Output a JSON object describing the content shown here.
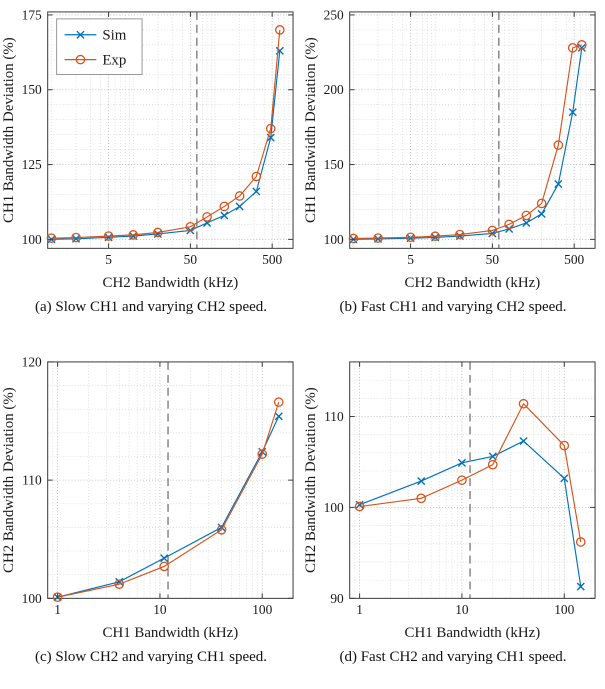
{
  "page": {
    "background": "#ffffff"
  },
  "colors": {
    "sim": "#0072BD",
    "exp": "#D95319",
    "axis": "#3a3a3a",
    "grid_major": "#b3b3b3",
    "grid_minor": "#d8d8d8",
    "threshold": "#5a5a5a",
    "legend_border": "#999999",
    "text": "#1a1a1a"
  },
  "chart_data": [
    {
      "id": "a",
      "type": "line",
      "caption": "(a) Slow CH1 and varying CH2 speed.",
      "xlabel": "CH2 Bandwidth (kHz)",
      "ylabel": "CH1 Bandwidth Deviation (%)",
      "xscale": "log",
      "grid": true,
      "xlim": [
        0.9,
        900
      ],
      "ylim": [
        97,
        176
      ],
      "xticks": [
        5,
        50,
        500
      ],
      "yticks": [
        100,
        125,
        150,
        175
      ],
      "y_minor_step": 5,
      "threshold_x": 60,
      "legend": true,
      "legend_pos": "top-left",
      "x": [
        1,
        2,
        5,
        10,
        20,
        50,
        80,
        130,
        200,
        320,
        480,
        620
      ],
      "series": [
        {
          "name": "Sim",
          "marker": "x",
          "values": [
            100,
            100.2,
            100.7,
            101.1,
            101.8,
            103,
            105.5,
            108,
            111,
            116,
            134,
            163
          ]
        },
        {
          "name": "Exp",
          "marker": "o",
          "values": [
            100.4,
            100.6,
            101.1,
            101.5,
            102.3,
            104.2,
            107.5,
            111,
            114.5,
            121,
            137,
            170
          ]
        }
      ]
    },
    {
      "id": "b",
      "type": "line",
      "caption": "(b) Fast CH1 and varying CH2 speed.",
      "xlabel": "CH2 Bandwidth (kHz)",
      "ylabel": "CH1 Bandwidth Deviation (%)",
      "xscale": "log",
      "grid": true,
      "xlim": [
        0.9,
        900
      ],
      "ylim": [
        94,
        252
      ],
      "xticks": [
        5,
        50,
        500
      ],
      "yticks": [
        100,
        150,
        200,
        250
      ],
      "y_minor_step": 10,
      "threshold_x": 60,
      "legend": false,
      "x": [
        1,
        2,
        5,
        10,
        20,
        50,
        80,
        130,
        200,
        320,
        480,
        620
      ],
      "series": [
        {
          "name": "Sim",
          "marker": "x",
          "values": [
            100,
            100.3,
            100.8,
            101.3,
            102.2,
            104,
            107,
            111,
            117,
            137,
            185,
            228
          ]
        },
        {
          "name": "Exp",
          "marker": "o",
          "values": [
            100.6,
            100.9,
            101.4,
            102.1,
            103.2,
            106,
            110,
            116,
            124,
            163,
            228,
            230
          ]
        }
      ]
    },
    {
      "id": "c",
      "type": "line",
      "caption": "(c) Slow CH2 and varying CH1 speed.",
      "xlabel": "CH1 Bandwidth (kHz)",
      "ylabel": "CH2 Bandwidth Deviation (%)",
      "xscale": "log",
      "grid": true,
      "xlim": [
        0.8,
        200
      ],
      "ylim": [
        100,
        120
      ],
      "xticks": [
        1,
        10,
        100
      ],
      "yticks": [
        100,
        110,
        120
      ],
      "y_minor_step": 2,
      "threshold_x": 12,
      "legend": false,
      "x": [
        1,
        4,
        11,
        40,
        100,
        145
      ],
      "series": [
        {
          "name": "Sim",
          "marker": "x",
          "values": [
            100.1,
            101.4,
            103.4,
            106.0,
            112.4,
            115.4
          ]
        },
        {
          "name": "Exp",
          "marker": "o",
          "values": [
            100.1,
            101.2,
            102.7,
            105.8,
            112.2,
            116.6
          ]
        }
      ]
    },
    {
      "id": "d",
      "type": "line",
      "caption": "(d) Fast CH2 and varying CH1 speed.",
      "xlabel": "CH1 Bandwidth (kHz)",
      "ylabel": "CH2 Bandwidth Deviation (%)",
      "xscale": "log",
      "grid": true,
      "xlim": [
        0.8,
        200
      ],
      "ylim": [
        90,
        116
      ],
      "xticks": [
        1,
        10,
        100
      ],
      "yticks": [
        90,
        100,
        110
      ],
      "y_minor_step": 2,
      "threshold_x": 12,
      "legend": false,
      "x": [
        1,
        4,
        10,
        20,
        40,
        100,
        145
      ],
      "series": [
        {
          "name": "Sim",
          "marker": "x",
          "values": [
            100.3,
            102.9,
            104.9,
            105.6,
            107.3,
            103.2,
            91.3
          ]
        },
        {
          "name": "Exp",
          "marker": "o",
          "values": [
            100.1,
            101.0,
            103.0,
            104.7,
            111.4,
            106.8,
            96.2
          ]
        }
      ]
    }
  ]
}
